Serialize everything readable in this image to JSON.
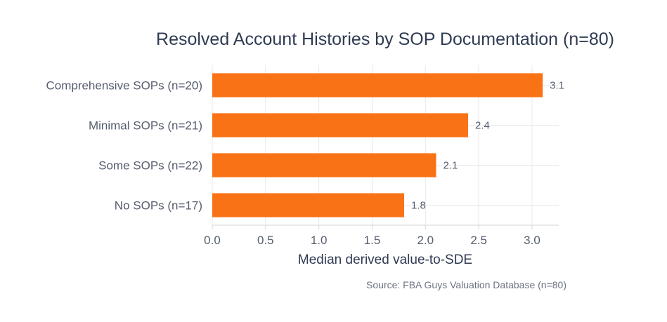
{
  "chart_data": {
    "type": "bar",
    "orientation": "horizontal",
    "title": "Resolved Account Histories by SOP Documentation (n=80)",
    "categories": [
      "Comprehensive SOPs (n=20)",
      "Minimal SOPs (n=21)",
      "Some SOPs (n=22)",
      "No SOPs (n=17)"
    ],
    "values": [
      3.1,
      2.4,
      2.1,
      1.8
    ],
    "value_labels": [
      "3.1",
      "2.4",
      "2.1",
      "1.8"
    ],
    "xlabel": "Median derived value-to-SDE",
    "ylabel": "",
    "xlim": [
      0,
      3.27
    ],
    "xticks": [
      0,
      0.5,
      1,
      1.5,
      2,
      2.5,
      3
    ],
    "xtick_labels": [
      "0.0",
      "0.5",
      "1.0",
      "1.5",
      "2.0",
      "2.5",
      "3.0"
    ],
    "grid": true,
    "bar_color": "#f97316",
    "source": "Source: FBA Guys Valuation Database (n=80)"
  }
}
